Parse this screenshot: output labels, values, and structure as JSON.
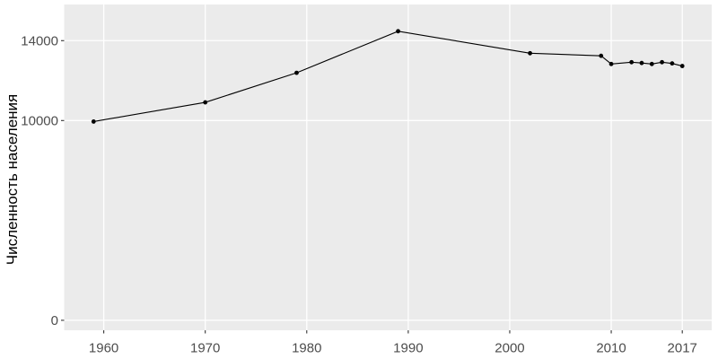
{
  "y_axis": {
    "title": "Численность населения",
    "tick_labels": [
      "0",
      "10000",
      "14000"
    ],
    "tick_values": [
      0,
      10000,
      14000
    ]
  },
  "x_axis": {
    "tick_labels": [
      "1960",
      "1970",
      "1980",
      "1990",
      "2000",
      "2010",
      "2017"
    ],
    "tick_values": [
      1960,
      1970,
      1980,
      1990,
      2000,
      2010,
      2017
    ]
  },
  "chart_data": {
    "type": "line",
    "title": "",
    "xlabel": "",
    "ylabel": "Численность населения",
    "x": [
      1959,
      1970,
      1979,
      1989,
      2002,
      2009,
      2010,
      2012,
      2013,
      2014,
      2015,
      2016,
      2017
    ],
    "values": [
      9950,
      10910,
      12390,
      14470,
      13370,
      13240,
      12830,
      12920,
      12880,
      12830,
      12920,
      12860,
      12730
    ],
    "xlim": [
      1956.1,
      2019.9
    ],
    "ylim": [
      -500,
      15810
    ],
    "grid": "major-only",
    "legend": false,
    "marker": "point",
    "colors": {
      "panel_bg": "#EBEBEB",
      "grid": "#FFFFFF",
      "line": "#000000",
      "point": "#000000",
      "tick_label": "#4D4D4D",
      "tick_mark": "#333333",
      "axis_title": "#000000",
      "outer_bg": "#FFFFFF"
    }
  }
}
